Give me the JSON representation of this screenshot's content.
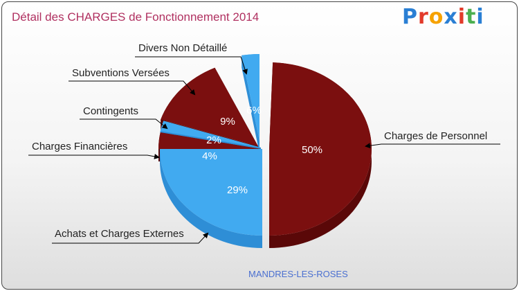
{
  "header": {
    "title": "Détail des CHARGES de Fonctionnement 2014",
    "logo_text": "Proxiti",
    "logo_colors": [
      "#2a7fd4",
      "#e23a2a",
      "#f6a200",
      "#2a7fd4",
      "#e23a2a",
      "#4caf50",
      "#2a7fd4"
    ]
  },
  "footer": {
    "city": "MANDRES-LES-ROSES"
  },
  "colors": {
    "dark_red": "#7b0f0f",
    "dark_red_side": "#5a0808",
    "blue": "#41aaf0",
    "blue_side": "#2e8ed6"
  },
  "chart_data": {
    "type": "pie",
    "title": "Détail des CHARGES de Fonctionnement 2014",
    "subtitle": "MANDRES-LES-ROSES",
    "labels": [
      "Charges de Personnel",
      "Achats et Charges Externes",
      "Charges Financières",
      "Contingents",
      "Subventions Versées",
      "Divers Non Détaillé"
    ],
    "values": [
      50,
      29,
      4,
      2,
      9,
      6
    ],
    "percent_labels": [
      "50%",
      "29%",
      "4%",
      "2%",
      "9%",
      "6%"
    ],
    "slice_colors": [
      "#7b0f0f",
      "#41aaf0",
      "#7b0f0f",
      "#41aaf0",
      "#7b0f0f",
      "#41aaf0"
    ],
    "exploded": [
      true,
      false,
      false,
      false,
      false,
      true
    ]
  }
}
